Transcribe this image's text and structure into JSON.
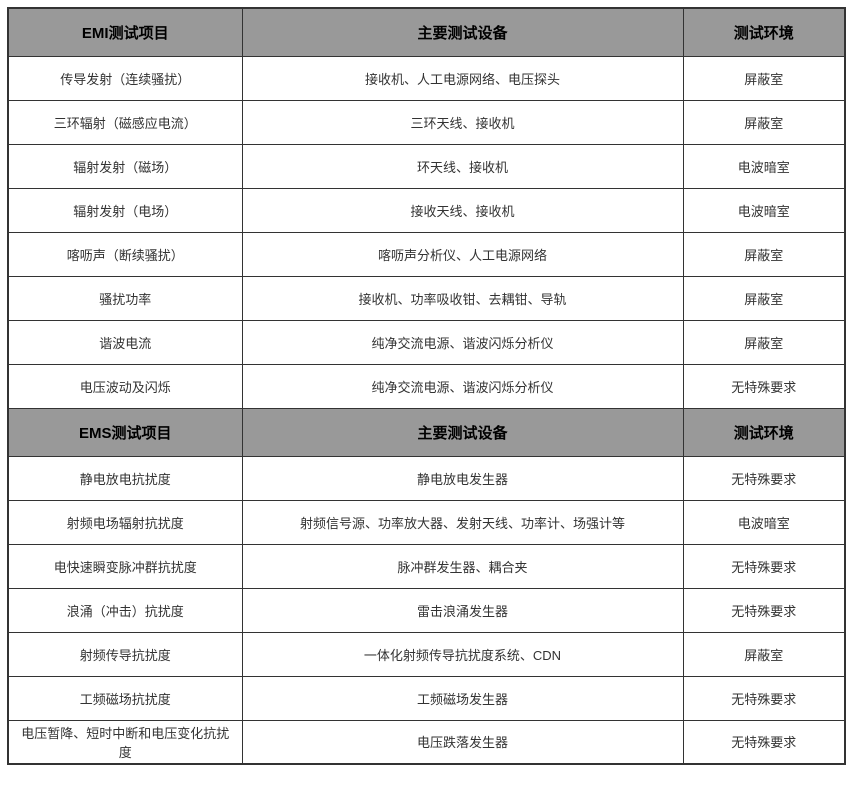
{
  "colors": {
    "header_bg": "#999999",
    "header_text": "#000000",
    "body_text": "#333333",
    "border": "#333333",
    "row_bg": "#ffffff"
  },
  "table": {
    "sections": [
      {
        "header": {
          "item": "EMI测试项目",
          "equipment": "主要测试设备",
          "environment": "测试环境"
        },
        "rows": [
          {
            "item": "传导发射（连续骚扰）",
            "equipment": "接收机、人工电源网络、电压探头",
            "environment": "屏蔽室"
          },
          {
            "item": "三环辐射（磁感应电流）",
            "equipment": "三环天线、接收机",
            "environment": "屏蔽室"
          },
          {
            "item": "辐射发射（磁场）",
            "equipment": "环天线、接收机",
            "environment": "电波暗室"
          },
          {
            "item": "辐射发射（电场）",
            "equipment": "接收天线、接收机",
            "environment": "电波暗室"
          },
          {
            "item": "喀呖声（断续骚扰）",
            "equipment": "喀呖声分析仪、人工电源网络",
            "environment": "屏蔽室"
          },
          {
            "item": "骚扰功率",
            "equipment": "接收机、功率吸收钳、去耦钳、导轨",
            "environment": "屏蔽室"
          },
          {
            "item": "谐波电流",
            "equipment": "纯净交流电源、谐波闪烁分析仪",
            "environment": "屏蔽室"
          },
          {
            "item": "电压波动及闪烁",
            "equipment": "纯净交流电源、谐波闪烁分析仪",
            "environment": "无特殊要求"
          }
        ]
      },
      {
        "header": {
          "item": "EMS测试项目",
          "equipment": "主要测试设备",
          "environment": "测试环境"
        },
        "rows": [
          {
            "item": "静电放电抗扰度",
            "equipment": "静电放电发生器",
            "environment": "无特殊要求"
          },
          {
            "item": "射频电场辐射抗扰度",
            "equipment": "射频信号源、功率放大器、发射天线、功率计、场强计等",
            "environment": "电波暗室"
          },
          {
            "item": "电快速瞬变脉冲群抗扰度",
            "equipment": "脉冲群发生器、耦合夹",
            "environment": "无特殊要求"
          },
          {
            "item": "浪涌（冲击）抗扰度",
            "equipment": "雷击浪涌发生器",
            "environment": "无特殊要求"
          },
          {
            "item": "射频传导抗扰度",
            "equipment": "一体化射频传导抗扰度系统、CDN",
            "environment": "屏蔽室"
          },
          {
            "item": "工频磁场抗扰度",
            "equipment": "工频磁场发生器",
            "environment": "无特殊要求"
          },
          {
            "item": "电压暂降、短时中断和电压变化抗扰度",
            "equipment": "电压跌落发生器",
            "environment": "无特殊要求"
          }
        ]
      }
    ]
  }
}
